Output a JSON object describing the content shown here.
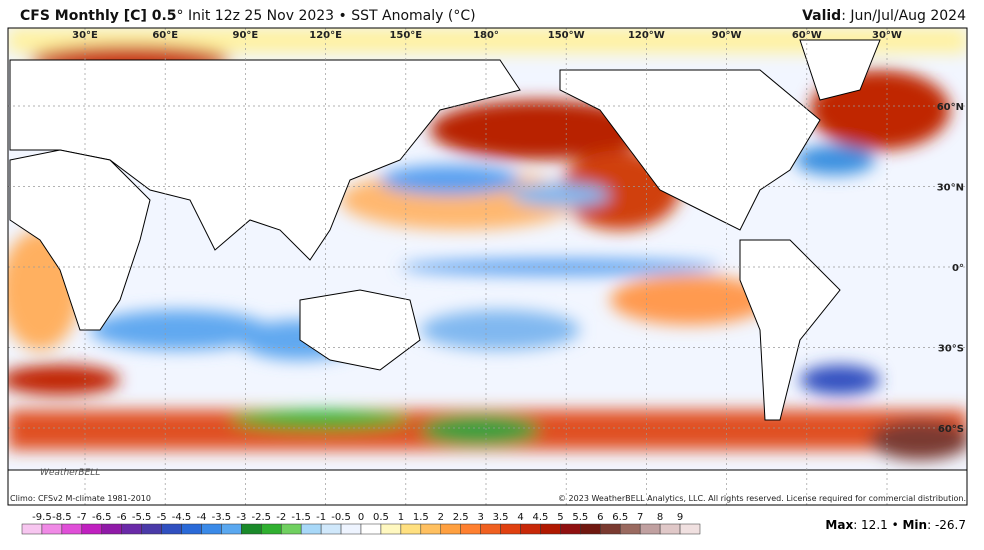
{
  "header": {
    "title_bold": "CFS Monthly [C] 0.5",
    "title_rest": "° Init 12z 25 Nov 2023 • SST Anomaly (°C)",
    "valid_label": "Valid",
    "valid_value": ": Jun/Jul/Aug 2024"
  },
  "map": {
    "lon_labels": [
      "30°E",
      "60°E",
      "90°E",
      "120°E",
      "150°E",
      "180°",
      "150°W",
      "120°W",
      "90°W",
      "60°W",
      "30°W"
    ],
    "lat_labels": [
      "60°N",
      "30°N",
      "0°",
      "30°S",
      "60°S"
    ],
    "logo": "WeatherBELL"
  },
  "footer": {
    "climo": "Climo: CFSv2 M-climate 1981-2010",
    "copyright": "© 2023 WeatherBELL Analytics, LLC. All rights reserved. License required for commercial distribution."
  },
  "colorbar": {
    "labels": [
      "-9.5",
      "-8.5",
      "-7",
      "-6.5",
      "-6",
      "-5.5",
      "-5",
      "-4.5",
      "-4",
      "-3.5",
      "-3",
      "-2.5",
      "-2",
      "-1.5",
      "-1",
      "-0.5",
      "0",
      "0.5",
      "1",
      "1.5",
      "2",
      "2.5",
      "3",
      "3.5",
      "4",
      "4.5",
      "5",
      "5.5",
      "6",
      "6.5",
      "7",
      "8",
      "9"
    ],
    "colors": [
      "#f7c6f0",
      "#f08ae6",
      "#e04fd8",
      "#c020c0",
      "#901aa8",
      "#6a2aa8",
      "#4a3aa8",
      "#3050c0",
      "#2a6ad8",
      "#3a8ae8",
      "#5aa8f0",
      "#1a8a2a",
      "#30b030",
      "#70d060",
      "#a8d8f8",
      "#d0e8fb",
      "#eef4ff",
      "#ffffff",
      "#fff8c0",
      "#ffe080",
      "#ffc060",
      "#ffa040",
      "#ff8030",
      "#f06020",
      "#e04010",
      "#c82808",
      "#b01800",
      "#901010",
      "#701810",
      "#7a3a30",
      "#9a6a60",
      "#c0a0a0",
      "#e0c8c8",
      "#f0e0e0"
    ]
  },
  "stats": {
    "max_label": "Max",
    "max_value": ": 12.1 •",
    "min_label": "Min",
    "min_value": ": -26.7"
  }
}
